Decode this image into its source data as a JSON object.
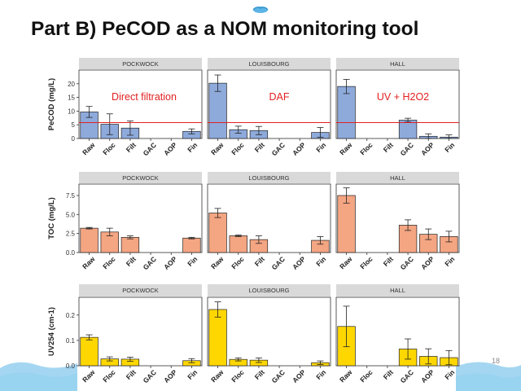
{
  "slide": {
    "title": "Part B) PeCOD as a NOM monitoring tool",
    "page_number": "18",
    "theme_colors": {
      "water_wave": "#5bb4e5",
      "logo": "#3aa0d8"
    }
  },
  "chart_data": [
    {
      "type": "bar",
      "ylabel": "PeCOD (mg/L)",
      "ylim": [
        0,
        25
      ],
      "yticks": [
        0,
        5,
        10,
        15,
        20
      ],
      "bar_color": "#8eaadb",
      "reference_line": {
        "y": 5.8,
        "color": "#e32020"
      },
      "categories": [
        "Raw",
        "Floc",
        "Filt",
        "GAC",
        "AOP",
        "Fin"
      ],
      "panels": [
        {
          "name": "POCKWOCK",
          "annotation": "Direct filtration",
          "values": [
            9.7,
            5.2,
            3.8,
            null,
            null,
            2.6
          ],
          "errors": [
            2.0,
            3.8,
            2.6,
            null,
            null,
            0.9
          ]
        },
        {
          "name": "LOUISBOURG",
          "annotation": "DAF",
          "values": [
            20.2,
            3.2,
            2.9,
            null,
            null,
            2.2
          ],
          "errors": [
            3.0,
            1.3,
            1.5,
            null,
            null,
            1.8
          ]
        },
        {
          "name": "HALL",
          "annotation": "UV + H2O2",
          "values": [
            19.0,
            null,
            null,
            6.7,
            0.8,
            0.5
          ],
          "errors": [
            2.6,
            null,
            null,
            0.7,
            0.9,
            0.8
          ]
        }
      ]
    },
    {
      "type": "bar",
      "ylabel": "TOC (mg/L)",
      "ylim": [
        0,
        9
      ],
      "yticks": [
        0.0,
        2.5,
        5.0,
        7.5
      ],
      "ytick_labels": [
        "0.0",
        "2.5",
        "5.0",
        "7.5"
      ],
      "bar_color": "#f4a582",
      "categories": [
        "Raw",
        "Floc",
        "Filt",
        "GAC",
        "AOP",
        "Fin"
      ],
      "panels": [
        {
          "name": "POCKWOCK",
          "values": [
            3.2,
            2.7,
            2.0,
            null,
            null,
            1.9
          ],
          "errors": [
            0.1,
            0.5,
            0.2,
            null,
            null,
            0.1
          ]
        },
        {
          "name": "LOUISBOURG",
          "values": [
            5.2,
            2.2,
            1.7,
            null,
            null,
            1.6
          ],
          "errors": [
            0.6,
            0.1,
            0.5,
            null,
            null,
            0.5
          ]
        },
        {
          "name": "HALL",
          "values": [
            7.5,
            null,
            null,
            3.6,
            2.4,
            2.1
          ],
          "errors": [
            1.0,
            null,
            null,
            0.7,
            0.7,
            0.7
          ]
        }
      ]
    },
    {
      "type": "bar",
      "ylabel": "UV254 (cm-1)",
      "ylim": [
        0,
        0.27
      ],
      "yticks": [
        0.0,
        0.1,
        0.2
      ],
      "ytick_labels": [
        "0.0",
        "0.1",
        "0.2"
      ],
      "bar_color": "#ffd700",
      "categories": [
        "Raw",
        "Floc",
        "Filt",
        "GAC",
        "AOP",
        "Fin"
      ],
      "panels": [
        {
          "name": "POCKWOCK",
          "values": [
            0.112,
            0.027,
            0.026,
            null,
            null,
            0.02
          ],
          "errors": [
            0.01,
            0.008,
            0.008,
            null,
            null,
            0.008
          ]
        },
        {
          "name": "LOUISBOURG",
          "values": [
            0.222,
            0.025,
            0.022,
            null,
            null,
            0.012
          ],
          "errors": [
            0.03,
            0.006,
            0.009,
            null,
            null,
            0.007
          ]
        },
        {
          "name": "HALL",
          "values": [
            0.155,
            null,
            null,
            0.066,
            0.037,
            0.032
          ],
          "errors": [
            0.08,
            null,
            null,
            0.04,
            0.03,
            0.028
          ]
        }
      ]
    }
  ]
}
